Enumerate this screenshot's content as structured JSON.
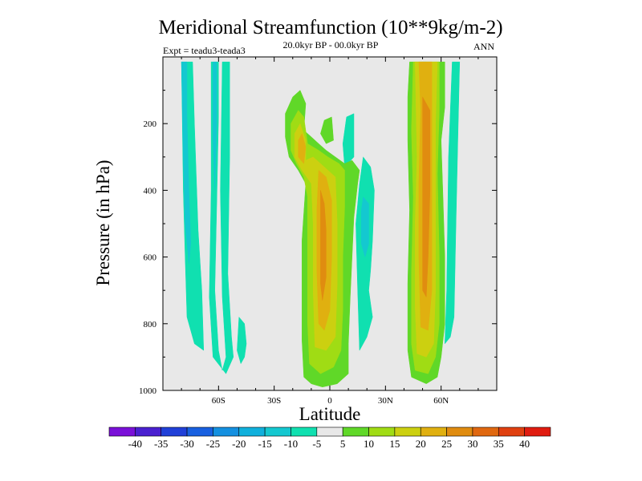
{
  "chart_data": {
    "type": "heatmap",
    "title": "Meridional Streamfunction (10**9kg/m-2)",
    "subtitle_left": "Expt = teadu3-teada3",
    "subtitle_center": "20.0kyr BP - 00.0kyr BP",
    "subtitle_right": "ANN",
    "xlabel": "Latitude",
    "ylabel": "Pressure (in hPa)",
    "xlim": [
      -90,
      90
    ],
    "ylim": [
      0,
      1000
    ],
    "x_ticks": [
      {
        "value": -60,
        "label": "60S"
      },
      {
        "value": -30,
        "label": "30S"
      },
      {
        "value": 0,
        "label": "0"
      },
      {
        "value": 30,
        "label": "30N"
      },
      {
        "value": 60,
        "label": "60N"
      }
    ],
    "y_ticks": [
      {
        "value": 200,
        "label": "200"
      },
      {
        "value": 400,
        "label": "400"
      },
      {
        "value": 600,
        "label": "600"
      },
      {
        "value": 800,
        "label": "800"
      },
      {
        "value": 1000,
        "label": "1000"
      }
    ],
    "plot_background": "#e8e8e8",
    "colorbar": {
      "labels": [
        "-40",
        "-35",
        "-30",
        "-25",
        "-20",
        "-15",
        "-10",
        "-5",
        "5",
        "10",
        "15",
        "20",
        "25",
        "30",
        "35",
        "40"
      ],
      "colors": [
        "#7a10d8",
        "#4a20d0",
        "#2040d8",
        "#1860e0",
        "#1490e0",
        "#10b0dc",
        "#14c8d0",
        "#10e0b0",
        "#e8e8e8",
        "#60d828",
        "#a0dc14",
        "#ccd010",
        "#e0b010",
        "#e08c10",
        "#e06810",
        "#e04010",
        "#e01c10"
      ]
    },
    "contours": [
      {
        "level": -10,
        "color": "#10e0b0",
        "polygons": [
          [
            [
              -80,
              15
            ],
            [
              -74,
              15
            ],
            [
              -73,
              200
            ],
            [
              -71,
              520
            ],
            [
              -69,
              700
            ],
            [
              -68,
              880
            ],
            [
              -73,
              860
            ],
            [
              -77,
              780
            ],
            [
              -78,
              600
            ],
            [
              -79,
              400
            ]
          ],
          [
            [
              -64,
              15
            ],
            [
              -60,
              15
            ],
            [
              -60,
              180
            ],
            [
              -61,
              450
            ],
            [
              -62,
              700
            ],
            [
              -60,
              880
            ],
            [
              -58,
              940
            ],
            [
              -56,
              900
            ],
            [
              -58,
              720
            ],
            [
              -59,
              400
            ],
            [
              -58,
              15
            ],
            [
              -54,
              15
            ],
            [
              -54,
              300
            ],
            [
              -55,
              650
            ],
            [
              -53,
              840
            ],
            [
              -52,
              900
            ],
            [
              -56,
              950
            ],
            [
              -63,
              900
            ],
            [
              -65,
              720
            ],
            [
              -64,
              400
            ]
          ],
          [
            [
              -49,
              780
            ],
            [
              -46,
              800
            ],
            [
              -45,
              860
            ],
            [
              -46,
              900
            ],
            [
              -48,
              920
            ],
            [
              -50,
              880
            ]
          ],
          [
            [
              9,
              180
            ],
            [
              13,
              170
            ],
            [
              13,
              300
            ],
            [
              8,
              330
            ],
            [
              7,
              260
            ]
          ],
          [
            [
              18,
              300
            ],
            [
              22,
              330
            ],
            [
              24,
              400
            ],
            [
              23,
              550
            ],
            [
              22,
              640
            ],
            [
              21,
              700
            ],
            [
              23,
              780
            ],
            [
              20,
              840
            ],
            [
              16,
              880
            ],
            [
              15,
              700
            ],
            [
              14,
              500
            ],
            [
              16,
              380
            ]
          ],
          [
            [
              50,
              15
            ],
            [
              52,
              15
            ],
            [
              50,
              200
            ],
            [
              50,
              400
            ],
            [
              51,
              700
            ],
            [
              52,
              900
            ],
            [
              49,
              900
            ],
            [
              48,
              700
            ],
            [
              47,
              400
            ],
            [
              48,
              200
            ]
          ],
          [
            [
              66,
              15
            ],
            [
              70,
              15
            ],
            [
              69,
              250
            ],
            [
              68,
              500
            ],
            [
              67,
              780
            ],
            [
              65,
              840
            ],
            [
              62,
              860
            ],
            [
              63,
              700
            ],
            [
              64,
              300
            ]
          ]
        ]
      },
      {
        "level": -15,
        "color": "#14c8d0",
        "polygons": [
          [
            [
              -80,
              15
            ],
            [
              -77,
              15
            ],
            [
              -77,
              180
            ],
            [
              -76,
              400
            ],
            [
              -75,
              560
            ],
            [
              -76,
              620
            ],
            [
              -78,
              500
            ],
            [
              -79,
              300
            ]
          ],
          [
            [
              -63,
              15
            ],
            [
              -61,
              15
            ],
            [
              -61,
              200
            ],
            [
              -62,
              400
            ],
            [
              -63,
              250
            ]
          ],
          [
            [
              18,
              420
            ],
            [
              21,
              440
            ],
            [
              21,
              560
            ],
            [
              19,
              600
            ],
            [
              17,
              560
            ],
            [
              17,
              460
            ]
          ]
        ]
      },
      {
        "level": 5,
        "color": "#60d828",
        "polygons": [
          [
            [
              -24,
              170
            ],
            [
              -20,
              120
            ],
            [
              -16,
              100
            ],
            [
              -13,
              140
            ],
            [
              -14,
              220
            ],
            [
              -10,
              240
            ],
            [
              -6,
              260
            ],
            [
              -2,
              280
            ],
            [
              3,
              300
            ],
            [
              8,
              320
            ],
            [
              12,
              310
            ],
            [
              16,
              340
            ],
            [
              15,
              380
            ],
            [
              13,
              480
            ],
            [
              12,
              600
            ],
            [
              11,
              720
            ],
            [
              10,
              860
            ],
            [
              10,
              950
            ],
            [
              4,
              980
            ],
            [
              -4,
              990
            ],
            [
              -10,
              980
            ],
            [
              -14,
              960
            ],
            [
              -15,
              850
            ],
            [
              -15,
              700
            ],
            [
              -15,
              550
            ],
            [
              -13,
              380
            ],
            [
              -17,
              340
            ],
            [
              -22,
              300
            ],
            [
              -24,
              240
            ]
          ],
          [
            [
              43,
              15
            ],
            [
              62,
              15
            ],
            [
              62,
              150
            ],
            [
              60,
              250
            ],
            [
              61,
              420
            ],
            [
              62,
              600
            ],
            [
              62,
              800
            ],
            [
              60,
              900
            ],
            [
              58,
              960
            ],
            [
              52,
              980
            ],
            [
              44,
              960
            ],
            [
              42,
              880
            ],
            [
              42,
              680
            ],
            [
              43,
              460
            ],
            [
              42,
              250
            ],
            [
              42,
              120
            ]
          ],
          [
            [
              -5,
              230
            ],
            [
              -3,
              190
            ],
            [
              1,
              180
            ],
            [
              2,
              250
            ],
            [
              -2,
              260
            ]
          ]
        ]
      },
      {
        "level": 10,
        "color": "#a0dc14",
        "polygons": [
          [
            [
              -21,
              200
            ],
            [
              -17,
              160
            ],
            [
              -14,
              180
            ],
            [
              -12,
              260
            ],
            [
              -6,
              280
            ],
            [
              -1,
              300
            ],
            [
              5,
              320
            ],
            [
              8,
              340
            ],
            [
              8,
              450
            ],
            [
              7,
              600
            ],
            [
              7,
              760
            ],
            [
              6,
              880
            ],
            [
              2,
              930
            ],
            [
              -5,
              950
            ],
            [
              -11,
              920
            ],
            [
              -12,
              800
            ],
            [
              -12,
              600
            ],
            [
              -12,
              420
            ],
            [
              -14,
              360
            ],
            [
              -18,
              320
            ],
            [
              -21,
              280
            ]
          ],
          [
            [
              45,
              15
            ],
            [
              59,
              15
            ],
            [
              59,
              160
            ],
            [
              58,
              350
            ],
            [
              59,
              600
            ],
            [
              59,
              800
            ],
            [
              57,
              900
            ],
            [
              53,
              950
            ],
            [
              46,
              940
            ],
            [
              44,
              860
            ],
            [
              44,
              650
            ],
            [
              45,
              420
            ],
            [
              44,
              220
            ]
          ]
        ]
      },
      {
        "level": 15,
        "color": "#ccd010",
        "polygons": [
          [
            [
              -19,
              230
            ],
            [
              -16,
              200
            ],
            [
              -13,
              250
            ],
            [
              -13,
              310
            ],
            [
              -9,
              300
            ],
            [
              -3,
              330
            ],
            [
              3,
              360
            ],
            [
              4,
              500
            ],
            [
              4,
              680
            ],
            [
              3,
              840
            ],
            [
              -2,
              880
            ],
            [
              -8,
              870
            ],
            [
              -9,
              700
            ],
            [
              -9,
              500
            ],
            [
              -10,
              380
            ],
            [
              -15,
              340
            ],
            [
              -19,
              300
            ]
          ],
          [
            [
              46,
              15
            ],
            [
              58,
              15
            ],
            [
              57,
              200
            ],
            [
              57,
              450
            ],
            [
              57,
              700
            ],
            [
              56,
              860
            ],
            [
              52,
              900
            ],
            [
              47,
              890
            ],
            [
              46,
              750
            ],
            [
              46,
              500
            ],
            [
              47,
              300
            ]
          ]
        ]
      },
      {
        "level": 20,
        "color": "#e0b010",
        "polygons": [
          [
            [
              -17,
              250
            ],
            [
              -15,
              230
            ],
            [
              -13,
              270
            ],
            [
              -14,
              320
            ],
            [
              -17,
              300
            ]
          ],
          [
            [
              -6,
              340
            ],
            [
              -2,
              360
            ],
            [
              1,
              430
            ],
            [
              1,
              600
            ],
            [
              0,
              760
            ],
            [
              -3,
              820
            ],
            [
              -6,
              800
            ],
            [
              -7,
              640
            ],
            [
              -7,
              460
            ]
          ],
          [
            [
              48,
              15
            ],
            [
              55,
              15
            ],
            [
              55,
              240
            ],
            [
              55,
              500
            ],
            [
              55,
              700
            ],
            [
              53,
              820
            ],
            [
              49,
              810
            ],
            [
              48,
              600
            ],
            [
              48,
              380
            ],
            [
              49,
              160
            ]
          ]
        ]
      },
      {
        "level": 25,
        "color": "#e08c10",
        "polygons": [
          [
            [
              -5,
              400
            ],
            [
              -3,
              440
            ],
            [
              -2,
              520
            ],
            [
              -2,
              660
            ],
            [
              -4,
              730
            ],
            [
              -5,
              680
            ],
            [
              -5,
              520
            ]
          ],
          [
            [
              50,
              120
            ],
            [
              54,
              160
            ],
            [
              54,
              400
            ],
            [
              53,
              600
            ],
            [
              52,
              720
            ],
            [
              50,
              700
            ],
            [
              50,
              500
            ],
            [
              50,
              300
            ]
          ]
        ]
      }
    ]
  }
}
